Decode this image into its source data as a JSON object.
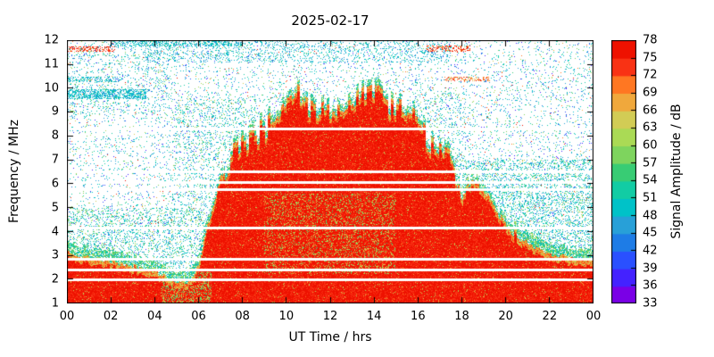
{
  "chart_data": {
    "type": "heatmap",
    "title": "2025-02-17",
    "xlabel": "UT Time / hrs",
    "ylabel": "Frequency / MHz",
    "colorbar_label": "Signal Amplitude / dB",
    "x_range_hours": [
      0,
      24
    ],
    "x_ticks": [
      "00",
      "02",
      "04",
      "06",
      "08",
      "10",
      "12",
      "14",
      "16",
      "18",
      "20",
      "22",
      "00"
    ],
    "y_range_mhz": [
      1,
      12
    ],
    "y_ticks": [
      1,
      2,
      3,
      4,
      5,
      6,
      7,
      8,
      9,
      10,
      11,
      12
    ],
    "colorbar_range_db": [
      33,
      78
    ],
    "colorbar_ticks": [
      33,
      36,
      39,
      42,
      45,
      48,
      51,
      54,
      57,
      60,
      63,
      66,
      69,
      72,
      75,
      78
    ],
    "colormap": [
      "#7a00e6",
      "#4422ff",
      "#2a50ff",
      "#1e7ce6",
      "#28a0d8",
      "#00c2c8",
      "#12cca4",
      "#38cc74",
      "#7ed45e",
      "#aada55",
      "#d2cc55",
      "#f0a83c",
      "#ff7722",
      "#f93214",
      "#ee1100"
    ],
    "grid": false,
    "legend_position": "right-colorbar",
    "envelope_step_hours": 0.5,
    "envelope_mhz_by_hour": [
      3.1,
      3.0,
      2.9,
      2.85,
      2.75,
      2.65,
      2.55,
      2.45,
      2.3,
      2.1,
      1.85,
      1.8,
      2.6,
      4.6,
      6.2,
      7.1,
      7.7,
      8.0,
      8.3,
      8.8,
      9.4,
      9.7,
      9.2,
      9.0,
      9.2,
      8.9,
      9.3,
      9.8,
      10.0,
      9.5,
      9.2,
      9.0,
      8.6,
      7.8,
      7.4,
      7.0,
      5.5,
      6.0,
      5.6,
      5.0,
      4.4,
      3.9,
      3.5,
      3.25,
      3.05,
      2.95,
      2.9,
      2.85,
      2.8
    ],
    "white_line_freqs_mhz": [
      8.3,
      6.5,
      6.05,
      5.75,
      4.15,
      2.85,
      2.4,
      1.98
    ],
    "noise_regions": [
      {
        "t1": 17.5,
        "t2": 24,
        "f1": 1,
        "f2": 7,
        "pc": 0.2,
        "pg": 0.05
      },
      {
        "t1": 0,
        "t2": 6.2,
        "f1": 1,
        "f2": 5,
        "pc": 0.14,
        "pg": 0.06
      },
      {
        "t1": 4.8,
        "t2": 8.6,
        "f1": 1,
        "f2": 9.6,
        "pc": 0.11,
        "pg": 0.04
      },
      {
        "t1": 15.8,
        "t2": 18.2,
        "f1": 1,
        "f2": 9.8,
        "pc": 0.1,
        "pg": 0.03
      },
      {
        "t1": 0,
        "t2": 5,
        "f1": 8.8,
        "f2": 12,
        "pc": 0.08,
        "pg": 0.02
      }
    ],
    "streaks": [
      {
        "t1": 0,
        "t2": 2.2,
        "f1": 11.55,
        "f2": 11.75,
        "db": [
          70,
          78
        ],
        "p": 0.45
      },
      {
        "t1": 16.4,
        "t2": 18.4,
        "f1": 11.55,
        "f2": 11.78,
        "db": [
          68,
          78
        ],
        "p": 0.4
      },
      {
        "t1": 17.2,
        "t2": 19.3,
        "f1": 10.3,
        "f2": 10.5,
        "db": [
          64,
          76
        ],
        "p": 0.38
      },
      {
        "t1": 0,
        "t2": 3.6,
        "f1": 9.55,
        "f2": 9.95,
        "db": [
          46,
          52
        ],
        "p": 0.5
      },
      {
        "t1": 0,
        "t2": 2.5,
        "f1": 10.25,
        "f2": 10.5,
        "db": [
          46,
          52
        ],
        "p": 0.35
      },
      {
        "t1": 3.5,
        "t2": 17.5,
        "f1": 11.1,
        "f2": 12.0,
        "db": [
          45,
          52
        ],
        "p": 0.13
      },
      {
        "t1": 2.0,
        "t2": 8.0,
        "f1": 11.75,
        "f2": 12.0,
        "db": [
          45,
          53
        ],
        "p": 0.3
      }
    ],
    "strong_signal_db_range": [
      73.5,
      78
    ]
  }
}
